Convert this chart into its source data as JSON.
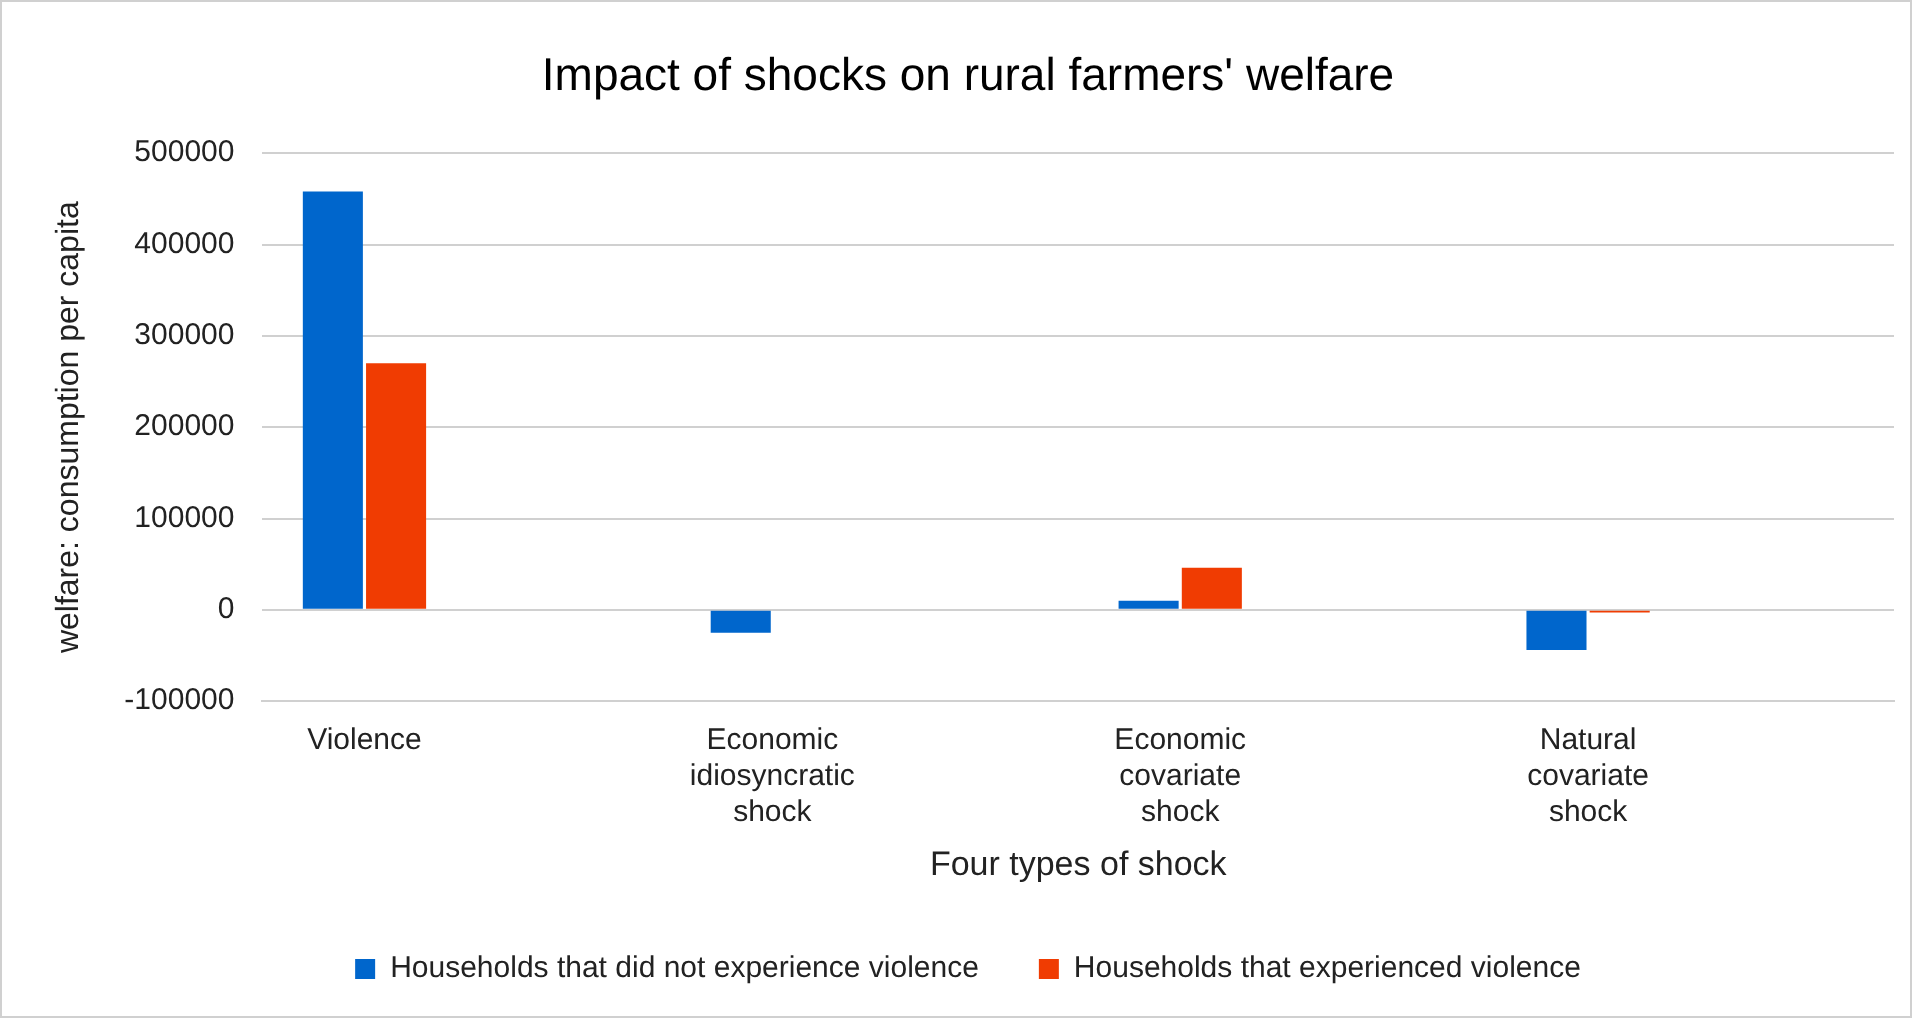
{
  "chart_data": {
    "type": "bar",
    "title": "Impact of shocks on rural farmers' welfare",
    "xlabel": "Four types of shock",
    "ylabel": "welfare: consumption per capita",
    "categories": [
      "Violence",
      null,
      "Economic idiosyncratic shock",
      null,
      "Economic covariate shock",
      null,
      "Natural covariate shock",
      null
    ],
    "series": [
      {
        "name": "Households that did not experience violence",
        "color": "#0066cc",
        "values": [
          458000,
          null,
          -25000,
          null,
          10000,
          null,
          -44000,
          null
        ]
      },
      {
        "name": "Households that experienced violence",
        "color": "#f03c02",
        "values": [
          270000,
          null,
          null,
          null,
          46000,
          null,
          -3000,
          null
        ]
      }
    ],
    "ylim": [
      -100000,
      500000
    ],
    "yticks": [
      -100000,
      0,
      100000,
      200000,
      300000,
      400000,
      500000
    ],
    "grid": "y",
    "legend": "bottom"
  }
}
